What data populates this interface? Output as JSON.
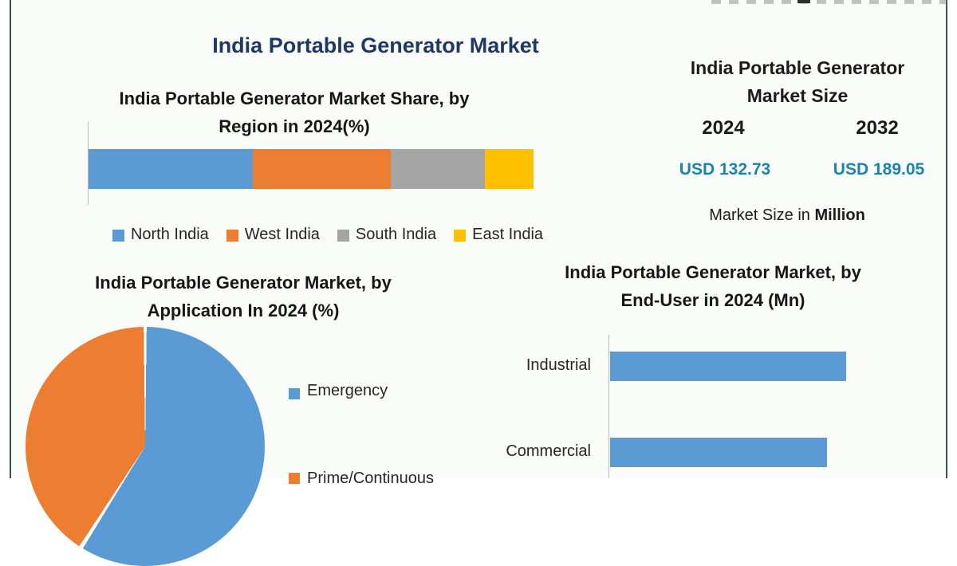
{
  "page": {
    "main_title": "India Portable Generator Market",
    "colors": {
      "accent_navy": "#1F3864",
      "value_teal": "#1985A9",
      "frame_border": "#40504E",
      "panel_background": "#FAFCFA",
      "series_blue": "#5B9BD5",
      "series_orange": "#ED7D31",
      "series_gray": "#A5A5A5",
      "series_yellow": "#FFC000"
    }
  },
  "market_size_panel": {
    "title_line1": "India Portable Generator",
    "title_line2": "Market Size",
    "start_year": "2024",
    "end_year": "2032",
    "start_value": "USD 132.73",
    "end_value": "USD 189.05",
    "footnote_prefix": "Market Size in",
    "footnote_bold": "Million"
  },
  "chart_data": [
    {
      "id": "region_share",
      "type": "bar",
      "subtype": "stacked-horizontal-single-bar",
      "title": "India Portable Generator Market Share, by Region in 2024(%)",
      "title_line1": "India Portable Generator Market Share, by",
      "title_line2": "Region in 2024(%)",
      "unit": "%",
      "values_estimated_from_pixels": true,
      "series": [
        {
          "name": "North India",
          "value": 37,
          "color": "#5B9BD5"
        },
        {
          "name": "West India",
          "value": 31,
          "color": "#ED7D31"
        },
        {
          "name": "South India",
          "value": 21,
          "color": "#A5A5A5"
        },
        {
          "name": "East India",
          "value": 11,
          "color": "#FFC000"
        }
      ],
      "legend_position": "bottom"
    },
    {
      "id": "application_share",
      "type": "pie",
      "title": "India Portable Generator Market, by Application In 2024 (%)",
      "title_line1": "India Portable Generator Market, by",
      "title_line2": "Application In 2024 (%)",
      "unit": "%",
      "values_estimated_from_pixels": true,
      "slices": [
        {
          "name": "Emergency",
          "value": 59,
          "color": "#5B9BD5"
        },
        {
          "name": "Prime/Continuous",
          "value": 41,
          "color": "#ED7D31",
          "label_cut_off_at_bottom": true
        }
      ],
      "legend_position": "right",
      "pie_cut_off_at_bottom": true
    },
    {
      "id": "end_user",
      "type": "bar",
      "subtype": "horizontal",
      "title": "India Portable Generator Market, by End-User in 2024 (Mn)",
      "title_line1": "India Portable Generator Market, by",
      "title_line2": "End-User in 2024 (Mn)",
      "unit": "Mn",
      "axis_values_shown": false,
      "categories": [
        "Industrial",
        "Commercial"
      ],
      "values_relative_pct": [
        100,
        92
      ],
      "bar_color": "#5B9BD5"
    }
  ]
}
